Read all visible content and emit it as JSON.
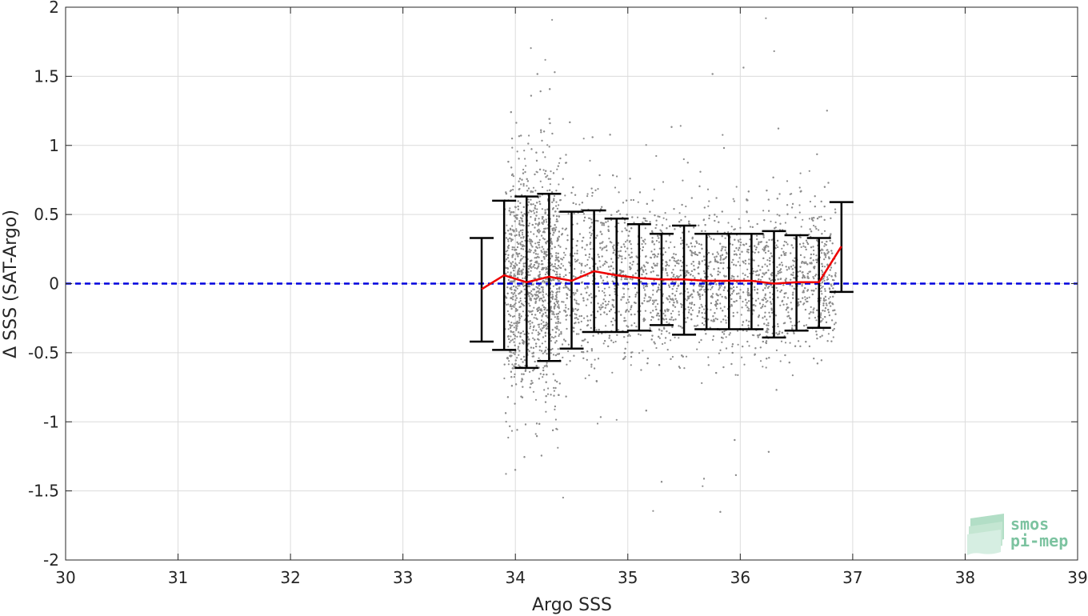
{
  "chart_data": {
    "type": "scatter",
    "xlabel": "Argo SSS",
    "ylabel": "Δ SSS (SAT-Argo)",
    "xlim": [
      30,
      39
    ],
    "ylim": [
      -2,
      2
    ],
    "xticks": [
      30,
      31,
      32,
      33,
      34,
      35,
      36,
      37,
      38,
      39
    ],
    "yticks": [
      -2,
      -1.5,
      -1,
      -0.5,
      0,
      0.5,
      1,
      1.5,
      2
    ],
    "xtick_labels": [
      "30",
      "31",
      "32",
      "33",
      "34",
      "35",
      "36",
      "37",
      "38",
      "39"
    ],
    "ytick_labels": [
      "-2",
      "-1.5",
      "-1",
      "-0.5",
      "0",
      "0.5",
      "1",
      "1.5",
      "2"
    ],
    "grid": true,
    "reference_line": {
      "y": 0,
      "style": "dashed",
      "color": "#0000dd"
    },
    "scatter": {
      "color": "#8c8c8c",
      "x_range": [
        33.9,
        36.9
      ],
      "dense_points_approx": 9000,
      "note_only": false
    },
    "binned_stats": {
      "x": [
        33.7,
        33.9,
        34.1,
        34.3,
        34.5,
        34.7,
        34.9,
        35.1,
        35.3,
        35.5,
        35.7,
        35.9,
        36.1,
        36.3,
        36.5,
        36.7,
        36.9
      ],
      "mean": [
        -0.04,
        0.06,
        0.01,
        0.05,
        0.02,
        0.09,
        0.06,
        0.04,
        0.03,
        0.03,
        0.02,
        0.02,
        0.02,
        0.0,
        0.01,
        0.01,
        0.27
      ],
      "upper": [
        0.33,
        0.6,
        0.63,
        0.65,
        0.52,
        0.53,
        0.47,
        0.43,
        0.36,
        0.42,
        0.36,
        0.36,
        0.36,
        0.38,
        0.35,
        0.33,
        0.59
      ],
      "lower": [
        -0.42,
        -0.48,
        -0.61,
        -0.56,
        -0.47,
        -0.35,
        -0.35,
        -0.34,
        -0.3,
        -0.37,
        -0.33,
        -0.33,
        -0.33,
        -0.39,
        -0.34,
        -0.32,
        -0.06
      ],
      "mean_color": "#ee0000",
      "errorbar_color": "#000000"
    }
  },
  "logo": {
    "line1": "smos",
    "line2": "pi-mep",
    "color": "#7cc3a0"
  }
}
